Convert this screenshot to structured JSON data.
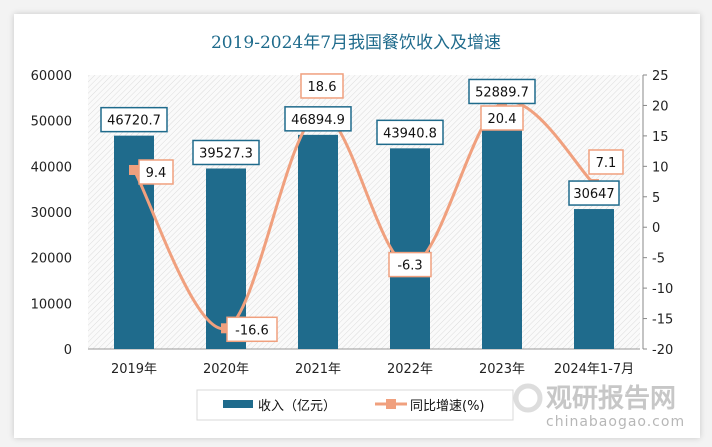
{
  "chart_data": {
    "type": "bar+line",
    "title": "2019-2024年7月我国餐饮收入及增速",
    "categories": [
      "2019年",
      "2020年",
      "2021年",
      "2022年",
      "2023年",
      "2024年1-7月"
    ],
    "series": [
      {
        "name": "收入（亿元）",
        "type": "bar",
        "axis": "left",
        "color": "#1f6b8c",
        "values": [
          46720.7,
          39527.3,
          46894.9,
          43940.8,
          52889.7,
          30647
        ],
        "labels": [
          "46720.7",
          "39527.3",
          "46894.9",
          "43940.8",
          "52889.7",
          "30647"
        ]
      },
      {
        "name": "同比增速(%)",
        "type": "line",
        "axis": "right",
        "color": "#f0a07e",
        "values": [
          9.4,
          -16.6,
          18.6,
          -6.3,
          20.4,
          7.1
        ],
        "labels": [
          "9.4",
          "-16.6",
          "18.6",
          "-6.3",
          "20.4",
          "7.1"
        ]
      }
    ],
    "left_axis": {
      "ylim": [
        0,
        60000
      ],
      "ticks": [
        "0",
        "10000",
        "20000",
        "30000",
        "40000",
        "50000",
        "60000"
      ]
    },
    "right_axis": {
      "ylim": [
        -20,
        25
      ],
      "ticks": [
        "-20",
        "-15",
        "-10",
        "-5",
        "0",
        "5",
        "10",
        "15",
        "20",
        "25"
      ]
    },
    "legend": "bottom",
    "grid": false
  },
  "watermark": {
    "text": "观研报告网",
    "url": "chinabaogao.com"
  }
}
